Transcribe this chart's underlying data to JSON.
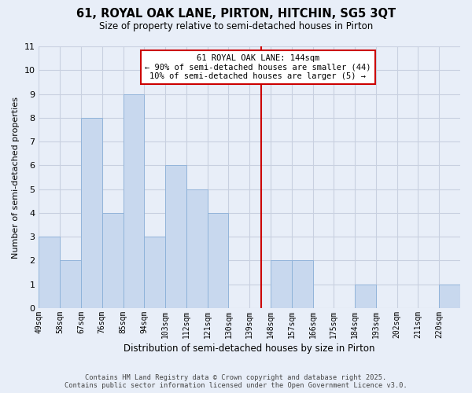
{
  "title": "61, ROYAL OAK LANE, PIRTON, HITCHIN, SG5 3QT",
  "subtitle": "Size of property relative to semi-detached houses in Pirton",
  "xlabel": "Distribution of semi-detached houses by size in Pirton",
  "ylabel": "Number of semi-detached properties",
  "bin_edges": [
    49,
    58,
    67,
    76,
    85,
    94,
    103,
    112,
    121,
    130,
    139,
    148,
    157,
    166,
    175,
    184,
    193,
    202,
    211,
    220,
    229
  ],
  "counts": [
    3,
    2,
    8,
    4,
    9,
    3,
    6,
    5,
    4,
    0,
    0,
    2,
    2,
    0,
    0,
    1,
    0,
    0,
    0,
    1
  ],
  "bar_color": "#c8d8ee",
  "bar_edgecolor": "#8ab0d8",
  "property_line_x": 144,
  "property_line_color": "#cc0000",
  "annotation_line1": "61 ROYAL OAK LANE: 144sqm",
  "annotation_line2": "← 90% of semi-detached houses are smaller (44)",
  "annotation_line3": "10% of semi-detached houses are larger (5) →",
  "annotation_box_edgecolor": "#cc0000",
  "ylim": [
    0,
    11
  ],
  "yticks": [
    0,
    1,
    2,
    3,
    4,
    5,
    6,
    7,
    8,
    9,
    10,
    11
  ],
  "grid_color": "#c8d0e0",
  "background_color": "#e8eef8",
  "footer_line1": "Contains HM Land Registry data © Crown copyright and database right 2025.",
  "footer_line2": "Contains public sector information licensed under the Open Government Licence v3.0."
}
